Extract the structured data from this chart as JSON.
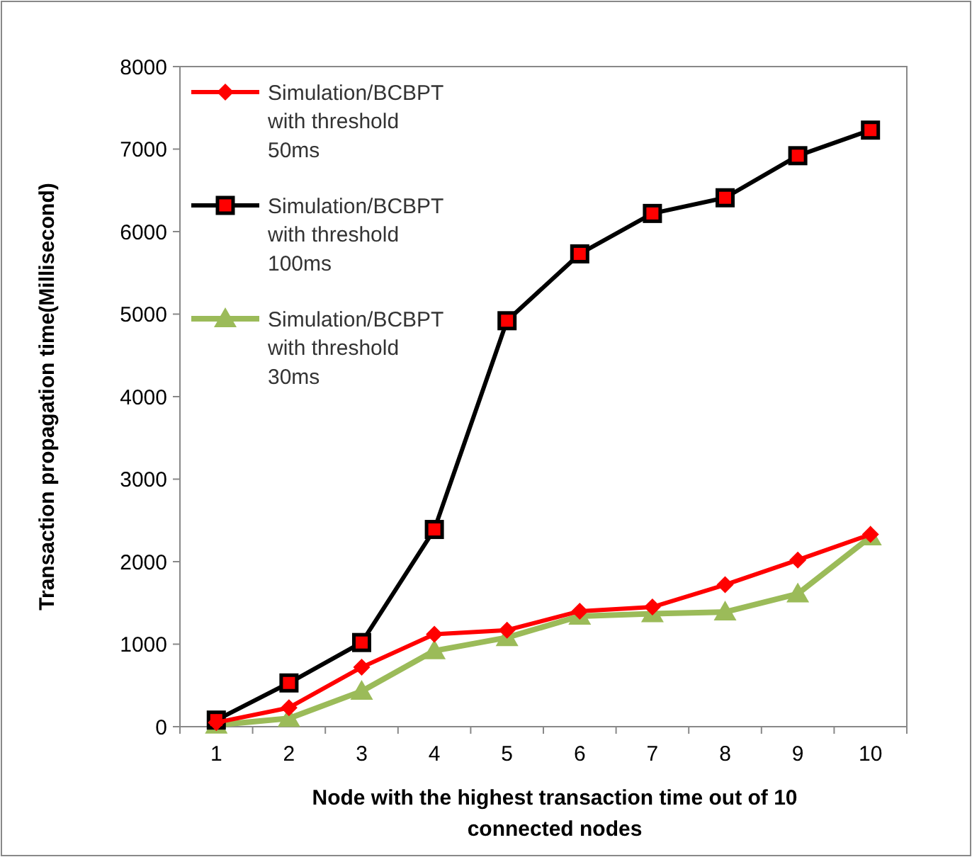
{
  "chart_data": {
    "type": "line",
    "xlabel": "Node with the highest transaction time out of 10 connected nodes",
    "ylabel": "Transaction propagation time(Millisecond)",
    "categories": [
      "1",
      "2",
      "3",
      "4",
      "5",
      "6",
      "7",
      "8",
      "9",
      "10"
    ],
    "series": [
      {
        "name": "Simulation/BCBPT with threshold 50ms",
        "color": "#ff0000",
        "marker": "diamond",
        "values": [
          50,
          230,
          720,
          1120,
          1170,
          1400,
          1450,
          1720,
          2020,
          2330
        ]
      },
      {
        "name": "Simulation/BCBPT with threshold 100ms",
        "color": "#000000",
        "marker": "square",
        "values": [
          80,
          530,
          1020,
          2390,
          4920,
          5730,
          6220,
          6410,
          6920,
          7230
        ]
      },
      {
        "name": "Simulation/BCBPT with threshold 30ms",
        "color": "#9bbb59",
        "marker": "triangle",
        "values": [
          20,
          100,
          430,
          920,
          1080,
          1340,
          1370,
          1390,
          1610,
          2300
        ]
      }
    ],
    "ylim": [
      0,
      8000
    ],
    "yticks": [
      0,
      1000,
      2000,
      3000,
      4000,
      5000,
      6000,
      7000,
      8000
    ],
    "grid": false,
    "legend": "top left"
  }
}
